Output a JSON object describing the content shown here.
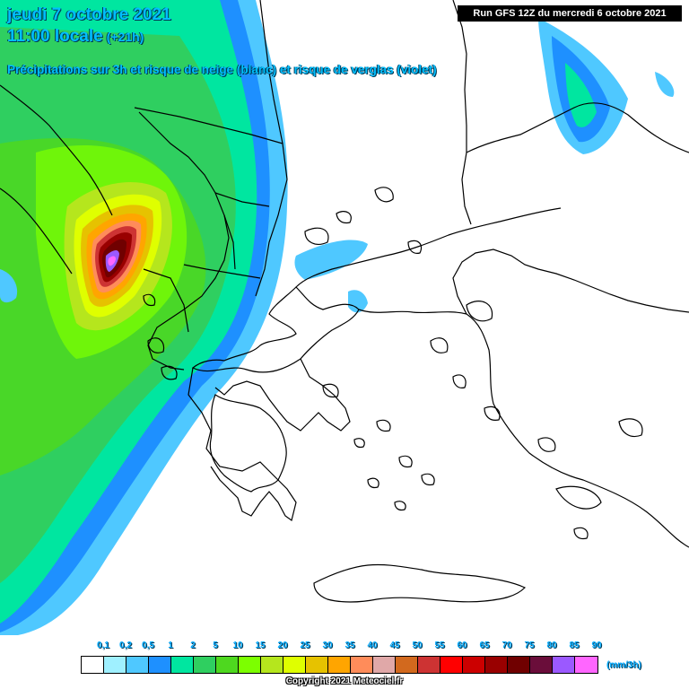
{
  "header": {
    "date": "jeudi 7 octobre 2021",
    "time": "11:00 locale",
    "lead": "(+21h)",
    "description": "Précipitations sur 3h et risque de neige (blanc) et risque de verglas (violet)"
  },
  "run_label": "Run GFS 12Z du mercredi 6 octobre 2021",
  "legend": {
    "unit": "(mm/3h)",
    "ticks": [
      "0,1",
      "0,2",
      "0,5",
      "1",
      "2",
      "5",
      "10",
      "15",
      "20",
      "25",
      "30",
      "35",
      "40",
      "45",
      "50",
      "55",
      "60",
      "65",
      "70",
      "75",
      "80",
      "85",
      "90"
    ],
    "colors": [
      "#ffffff",
      "#9ff0ff",
      "#4fc8ff",
      "#1e90ff",
      "#00e6a0",
      "#2fcf60",
      "#4ed81f",
      "#7cff00",
      "#b5e61d",
      "#dfff00",
      "#e6c200",
      "#ffa500",
      "#ff8c5a",
      "#e0a8a8",
      "#d2691e",
      "#cd3333",
      "#ff0000",
      "#cc0000",
      "#990000",
      "#700000",
      "#6a0d3a",
      "#9b59ff",
      "#ff66ff"
    ]
  },
  "copyright": "Copyright 2021 Meteociel.fr",
  "colors": {
    "title": "#00bfff",
    "coast": "#000000"
  }
}
